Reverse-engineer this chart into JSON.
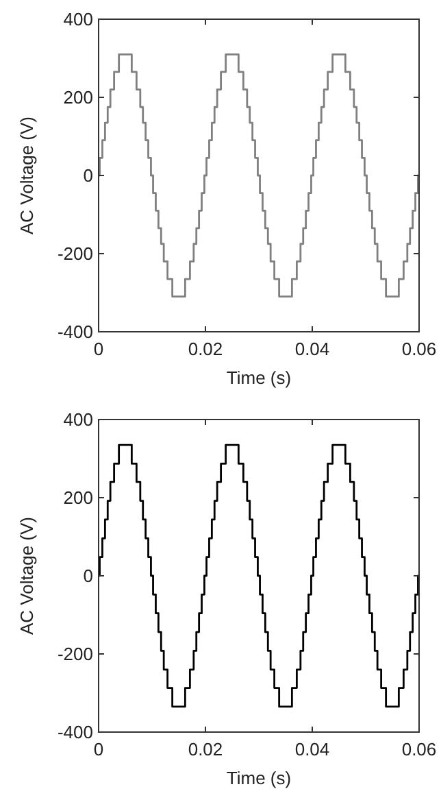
{
  "chart_data": [
    {
      "type": "step",
      "xlabel": "Time (s)",
      "ylabel": "AC Voltage (V)",
      "xlim": [
        0,
        0.06
      ],
      "ylim": [
        -400,
        400
      ],
      "xticks": [
        0,
        0.02,
        0.04,
        0.06
      ],
      "yticks": [
        -400,
        -200,
        0,
        200,
        400
      ],
      "series": [
        {
          "color": "#808080",
          "x": [
            0,
            0.0002,
            0.0007,
            0.0012,
            0.0017,
            0.0022,
            0.0029,
            0.0038,
            0.0062,
            0.0071,
            0.0078,
            0.0083,
            0.0088,
            0.0093,
            0.0098,
            0.0102,
            0.0107,
            0.0112,
            0.0117,
            0.0122,
            0.0129,
            0.0138,
            0.0162,
            0.0171,
            0.0178,
            0.0183,
            0.0188,
            0.0193,
            0.0198,
            0.0202,
            0.0207,
            0.0212,
            0.0217,
            0.0222,
            0.0229,
            0.0238,
            0.0262,
            0.0271,
            0.0278,
            0.0283,
            0.0288,
            0.0293,
            0.0298,
            0.0302,
            0.0307,
            0.0312,
            0.0317,
            0.0322,
            0.0329,
            0.0338,
            0.0362,
            0.0371,
            0.0378,
            0.0383,
            0.0388,
            0.0393,
            0.0398,
            0.0402,
            0.0407,
            0.0412,
            0.0417,
            0.0422,
            0.0429,
            0.0438,
            0.0462,
            0.0471,
            0.0478,
            0.0483,
            0.0488,
            0.0493,
            0.0498,
            0.0502,
            0.0507,
            0.0512,
            0.0517,
            0.0522,
            0.0529,
            0.0538,
            0.0562,
            0.0571,
            0.0578,
            0.0583,
            0.0588,
            0.0593,
            0.0598,
            0.06
          ],
          "values": [
            0,
            45,
            90,
            135,
            175,
            220,
            265,
            310,
            265,
            220,
            175,
            135,
            90,
            45,
            0,
            -45,
            -90,
            -135,
            -175,
            -220,
            -265,
            -310,
            -265,
            -220,
            -175,
            -135,
            -90,
            -45,
            0,
            45,
            90,
            135,
            175,
            220,
            265,
            310,
            265,
            220,
            175,
            135,
            90,
            45,
            0,
            -45,
            -90,
            -135,
            -175,
            -220,
            -265,
            -310,
            -265,
            -220,
            -175,
            -135,
            -90,
            -45,
            0,
            45,
            90,
            135,
            175,
            220,
            265,
            310,
            265,
            220,
            175,
            135,
            90,
            45,
            0,
            -45,
            -90,
            -135,
            -175,
            -220,
            -265,
            -310,
            -265,
            -220,
            -175,
            -135,
            -90,
            -45,
            0,
            0
          ]
        }
      ]
    },
    {
      "type": "step",
      "xlabel": "Time (s)",
      "ylabel": "AC Voltage (V)",
      "xlim": [
        0,
        0.06
      ],
      "ylim": [
        -400,
        400
      ],
      "xticks": [
        0,
        0.02,
        0.04,
        0.06
      ],
      "yticks": [
        -400,
        -200,
        0,
        200,
        400
      ],
      "series": [
        {
          "color": "#000000",
          "x": [
            0,
            0.0002,
            0.0007,
            0.0012,
            0.0017,
            0.0022,
            0.0029,
            0.0038,
            0.0062,
            0.0071,
            0.0078,
            0.0083,
            0.0088,
            0.0093,
            0.0098,
            0.0102,
            0.0107,
            0.0112,
            0.0117,
            0.0122,
            0.0129,
            0.0138,
            0.0162,
            0.0171,
            0.0178,
            0.0183,
            0.0188,
            0.0193,
            0.0198,
            0.0202,
            0.0207,
            0.0212,
            0.0217,
            0.0222,
            0.0229,
            0.0238,
            0.0262,
            0.0271,
            0.0278,
            0.0283,
            0.0288,
            0.0293,
            0.0298,
            0.0302,
            0.0307,
            0.0312,
            0.0317,
            0.0322,
            0.0329,
            0.0338,
            0.0362,
            0.0371,
            0.0378,
            0.0383,
            0.0388,
            0.0393,
            0.0398,
            0.0402,
            0.0407,
            0.0412,
            0.0417,
            0.0422,
            0.0429,
            0.0438,
            0.0462,
            0.0471,
            0.0478,
            0.0483,
            0.0488,
            0.0493,
            0.0498,
            0.0502,
            0.0507,
            0.0512,
            0.0517,
            0.0522,
            0.0529,
            0.0538,
            0.0562,
            0.0571,
            0.0578,
            0.0583,
            0.0588,
            0.0593,
            0.0598,
            0.06
          ],
          "values": [
            0,
            48,
            96,
            144,
            192,
            240,
            287,
            335,
            287,
            240,
            192,
            144,
            96,
            48,
            0,
            -48,
            -96,
            -144,
            -192,
            -240,
            -287,
            -335,
            -287,
            -240,
            -192,
            -144,
            -96,
            -48,
            0,
            48,
            96,
            144,
            192,
            240,
            287,
            335,
            287,
            240,
            192,
            144,
            96,
            48,
            0,
            -48,
            -96,
            -144,
            -192,
            -240,
            -287,
            -335,
            -287,
            -240,
            -192,
            -144,
            -96,
            -48,
            0,
            48,
            96,
            144,
            192,
            240,
            287,
            335,
            287,
            240,
            192,
            144,
            96,
            48,
            0,
            -48,
            -96,
            -144,
            -192,
            -240,
            -287,
            -335,
            -287,
            -240,
            -192,
            -144,
            -96,
            -48,
            0,
            0
          ]
        }
      ]
    }
  ]
}
